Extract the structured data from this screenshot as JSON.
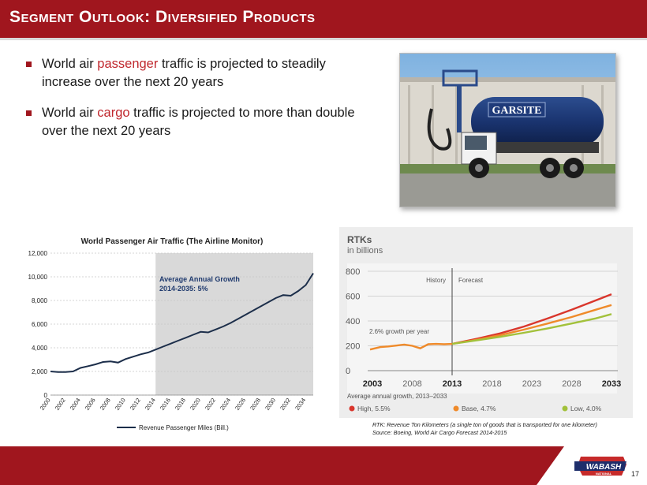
{
  "slide": {
    "title": "Segment Outlook: Diversified Products",
    "page_number": "17",
    "colors": {
      "brand_red": "#a0161e",
      "highlight": "#c0282e"
    }
  },
  "bullets": [
    {
      "pre": "World air ",
      "highlight": "passenger",
      "post": " traffic is projected to steadily increase over the next 20 years"
    },
    {
      "pre": "World air ",
      "highlight": "cargo",
      "post": " traffic is projected to more than double over the next 20 years"
    }
  ],
  "photo": {
    "truck_logo_text": "GARSITE"
  },
  "logo": {
    "text": "WABASH",
    "subtext": "NATIONAL"
  },
  "footnote": {
    "line1": "RTK: Revenue Ton Kilometers (a single ton of goods that is transported for one kilometer)",
    "line2": "Source: Boeing, World Air Cargo Forecast 2014-2015"
  },
  "chart_data": [
    {
      "type": "line",
      "title": "World Passenger Air Traffic (The Airline Monitor)",
      "annotation": "Average Annual Growth 2014-2035: 5%",
      "annotation_line1": "Average Annual Growth",
      "annotation_line2": "2014-2035: 5%",
      "legend": "Revenue Passenger Miles (Bill.)",
      "ylim": [
        0,
        12000
      ],
      "yticks": [
        "0",
        "2,000",
        "4,000",
        "6,000",
        "8,000",
        "10,000",
        "12,000"
      ],
      "xticks": [
        "2000",
        "2002",
        "2004",
        "2006",
        "2008",
        "2010",
        "2012",
        "2014",
        "2016",
        "2018",
        "2020",
        "2022",
        "2024",
        "2026",
        "2028",
        "2030",
        "2032",
        "2034"
      ],
      "shaded_from": 2014,
      "grid": true,
      "series": [
        {
          "x": [
            2000,
            2001,
            2002,
            2003,
            2004,
            2005,
            2006,
            2007,
            2008,
            2009,
            2010,
            2011,
            2012,
            2013,
            2014,
            2015,
            2016,
            2017,
            2018,
            2019,
            2020,
            2021,
            2022,
            2023,
            2024,
            2025,
            2026,
            2027,
            2028,
            2029,
            2030,
            2031,
            2032,
            2033,
            2034,
            2035
          ],
          "values": [
            2000,
            1950,
            1950,
            2000,
            2300,
            2450,
            2600,
            2800,
            2850,
            2750,
            3050,
            3250,
            3450,
            3600,
            3850,
            4100,
            4350,
            4600,
            4850,
            5100,
            5350,
            5300,
            5550,
            5800,
            6100,
            6450,
            6800,
            7150,
            7500,
            7850,
            8200,
            8450,
            8400,
            8800,
            9300,
            10300
          ]
        }
      ]
    },
    {
      "type": "line",
      "title": "RTKs",
      "subtitle": "in billions",
      "ylim": [
        0,
        800
      ],
      "yticks": [
        "0",
        "200",
        "400",
        "600",
        "800"
      ],
      "xticks": [
        "2003",
        "2008",
        "2013",
        "2018",
        "2023",
        "2028",
        "2033"
      ],
      "xlim": [
        2003,
        2033
      ],
      "divider_year": 2013,
      "history_label": "History",
      "forecast_label": "Forecast",
      "growth_label": "2.6% growth per year",
      "avg_growth_label": "Average annual growth, 2013–2033",
      "legend_colors": {
        "High": "#d9362c",
        "Base": "#ef8a2a",
        "Low": "#a2c13b"
      },
      "legend_labels": [
        "High, 5.5%",
        "Base, 4.7%",
        "Low, 4.0%"
      ],
      "series": [
        {
          "name": "History",
          "color": "#ef8a2a",
          "x": [
            2002.7,
            2004,
            2005,
            2006,
            2007,
            2008,
            2009,
            2010,
            2011,
            2012,
            2013
          ],
          "values": [
            170,
            190,
            195,
            202,
            210,
            200,
            180,
            213,
            215,
            213,
            215
          ]
        },
        {
          "name": "High, 5.5%",
          "color": "#d9362c",
          "x": [
            2013,
            2016,
            2019,
            2022,
            2025,
            2028,
            2031,
            2033
          ],
          "values": [
            215,
            255,
            300,
            355,
            420,
            490,
            565,
            615
          ]
        },
        {
          "name": "Base, 4.7%",
          "color": "#ef8a2a",
          "x": [
            2013,
            2016,
            2019,
            2022,
            2025,
            2028,
            2031,
            2033
          ],
          "values": [
            215,
            248,
            285,
            330,
            380,
            432,
            490,
            528
          ]
        },
        {
          "name": "Low, 4.0%",
          "color": "#a2c13b",
          "x": [
            2013,
            2016,
            2019,
            2022,
            2025,
            2028,
            2031,
            2033
          ],
          "values": [
            215,
            243,
            272,
            305,
            340,
            380,
            420,
            455
          ]
        }
      ]
    }
  ]
}
